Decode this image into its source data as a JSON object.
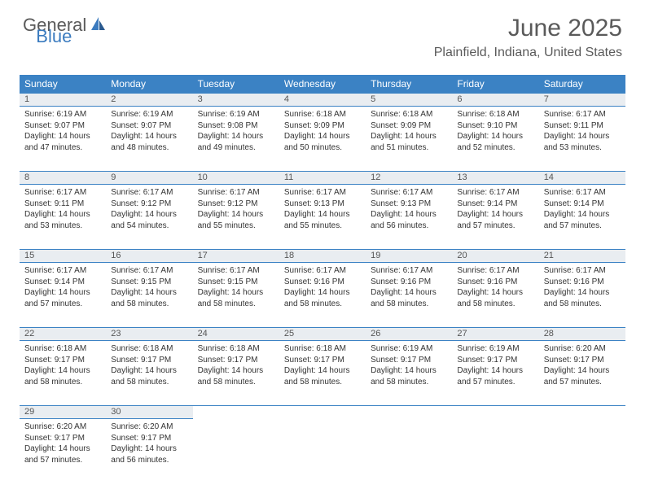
{
  "brand": {
    "word1": "General",
    "word2": "Blue"
  },
  "title": "June 2025",
  "location": "Plainfield, Indiana, United States",
  "theme": {
    "header_bg": "#3b82c4",
    "header_fg": "#ffffff",
    "daybar_bg": "#e9edf1",
    "body_bg": "#ffffff",
    "text_color": "#333333",
    "brand_gray": "#5a5a5a",
    "brand_blue": "#3b7bbf"
  },
  "weekdays": [
    "Sunday",
    "Monday",
    "Tuesday",
    "Wednesday",
    "Thursday",
    "Friday",
    "Saturday"
  ],
  "weeks": [
    [
      {
        "n": "1",
        "sr": "6:19 AM",
        "ss": "9:07 PM",
        "dl": "14 hours and 47 minutes."
      },
      {
        "n": "2",
        "sr": "6:19 AM",
        "ss": "9:07 PM",
        "dl": "14 hours and 48 minutes."
      },
      {
        "n": "3",
        "sr": "6:19 AM",
        "ss": "9:08 PM",
        "dl": "14 hours and 49 minutes."
      },
      {
        "n": "4",
        "sr": "6:18 AM",
        "ss": "9:09 PM",
        "dl": "14 hours and 50 minutes."
      },
      {
        "n": "5",
        "sr": "6:18 AM",
        "ss": "9:09 PM",
        "dl": "14 hours and 51 minutes."
      },
      {
        "n": "6",
        "sr": "6:18 AM",
        "ss": "9:10 PM",
        "dl": "14 hours and 52 minutes."
      },
      {
        "n": "7",
        "sr": "6:17 AM",
        "ss": "9:11 PM",
        "dl": "14 hours and 53 minutes."
      }
    ],
    [
      {
        "n": "8",
        "sr": "6:17 AM",
        "ss": "9:11 PM",
        "dl": "14 hours and 53 minutes."
      },
      {
        "n": "9",
        "sr": "6:17 AM",
        "ss": "9:12 PM",
        "dl": "14 hours and 54 minutes."
      },
      {
        "n": "10",
        "sr": "6:17 AM",
        "ss": "9:12 PM",
        "dl": "14 hours and 55 minutes."
      },
      {
        "n": "11",
        "sr": "6:17 AM",
        "ss": "9:13 PM",
        "dl": "14 hours and 55 minutes."
      },
      {
        "n": "12",
        "sr": "6:17 AM",
        "ss": "9:13 PM",
        "dl": "14 hours and 56 minutes."
      },
      {
        "n": "13",
        "sr": "6:17 AM",
        "ss": "9:14 PM",
        "dl": "14 hours and 57 minutes."
      },
      {
        "n": "14",
        "sr": "6:17 AM",
        "ss": "9:14 PM",
        "dl": "14 hours and 57 minutes."
      }
    ],
    [
      {
        "n": "15",
        "sr": "6:17 AM",
        "ss": "9:14 PM",
        "dl": "14 hours and 57 minutes."
      },
      {
        "n": "16",
        "sr": "6:17 AM",
        "ss": "9:15 PM",
        "dl": "14 hours and 58 minutes."
      },
      {
        "n": "17",
        "sr": "6:17 AM",
        "ss": "9:15 PM",
        "dl": "14 hours and 58 minutes."
      },
      {
        "n": "18",
        "sr": "6:17 AM",
        "ss": "9:16 PM",
        "dl": "14 hours and 58 minutes."
      },
      {
        "n": "19",
        "sr": "6:17 AM",
        "ss": "9:16 PM",
        "dl": "14 hours and 58 minutes."
      },
      {
        "n": "20",
        "sr": "6:17 AM",
        "ss": "9:16 PM",
        "dl": "14 hours and 58 minutes."
      },
      {
        "n": "21",
        "sr": "6:17 AM",
        "ss": "9:16 PM",
        "dl": "14 hours and 58 minutes."
      }
    ],
    [
      {
        "n": "22",
        "sr": "6:18 AM",
        "ss": "9:17 PM",
        "dl": "14 hours and 58 minutes."
      },
      {
        "n": "23",
        "sr": "6:18 AM",
        "ss": "9:17 PM",
        "dl": "14 hours and 58 minutes."
      },
      {
        "n": "24",
        "sr": "6:18 AM",
        "ss": "9:17 PM",
        "dl": "14 hours and 58 minutes."
      },
      {
        "n": "25",
        "sr": "6:18 AM",
        "ss": "9:17 PM",
        "dl": "14 hours and 58 minutes."
      },
      {
        "n": "26",
        "sr": "6:19 AM",
        "ss": "9:17 PM",
        "dl": "14 hours and 58 minutes."
      },
      {
        "n": "27",
        "sr": "6:19 AM",
        "ss": "9:17 PM",
        "dl": "14 hours and 57 minutes."
      },
      {
        "n": "28",
        "sr": "6:20 AM",
        "ss": "9:17 PM",
        "dl": "14 hours and 57 minutes."
      }
    ],
    [
      {
        "n": "29",
        "sr": "6:20 AM",
        "ss": "9:17 PM",
        "dl": "14 hours and 57 minutes."
      },
      {
        "n": "30",
        "sr": "6:20 AM",
        "ss": "9:17 PM",
        "dl": "14 hours and 56 minutes."
      },
      null,
      null,
      null,
      null,
      null
    ]
  ],
  "labels": {
    "sunrise": "Sunrise:",
    "sunset": "Sunset:",
    "daylight": "Daylight:"
  }
}
